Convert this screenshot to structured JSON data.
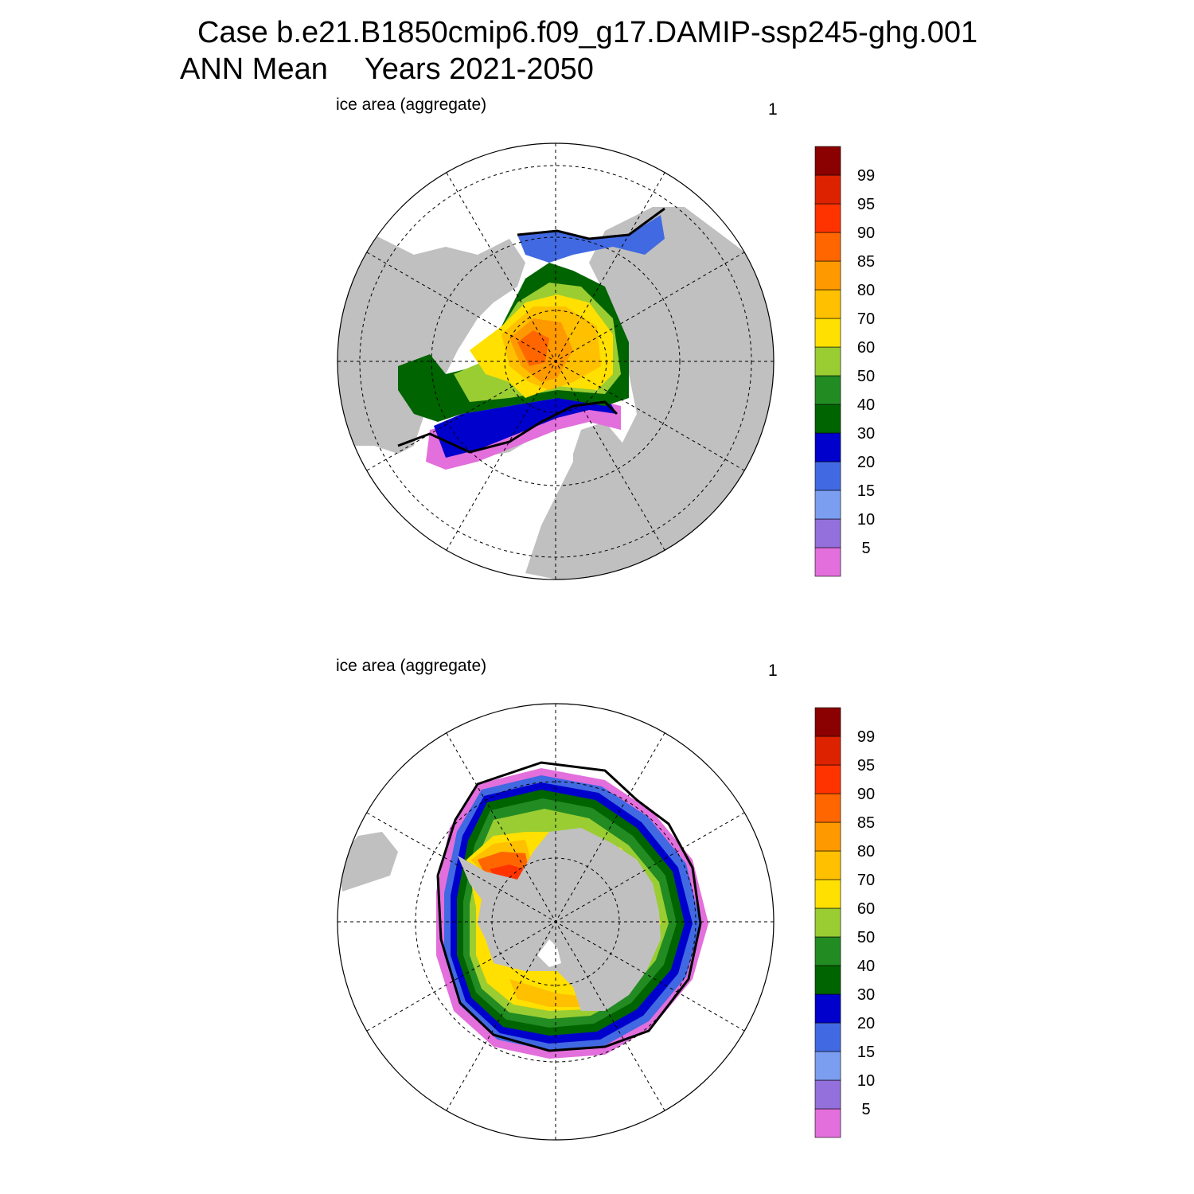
{
  "title": {
    "case": "Case b.e21.B1850cmip6.f09_g17.DAMIP-ssp245-ghg.001",
    "season": "ANN Mean",
    "years": "Years 2021-2050"
  },
  "panels": [
    {
      "label": "ice area  (aggregate)",
      "value": "1",
      "hemisphere": "north"
    },
    {
      "label": "ice area  (aggregate)",
      "value": "1",
      "hemisphere": "south"
    }
  ],
  "colorbar": {
    "levels": [
      "5",
      "10",
      "15",
      "20",
      "30",
      "40",
      "50",
      "60",
      "70",
      "80",
      "85",
      "90",
      "95",
      "99"
    ],
    "colors": [
      "#e36fdc",
      "#9370db",
      "#7b9ef0",
      "#4169e1",
      "#0000cd",
      "#006400",
      "#228b22",
      "#9acd32",
      "#ffe000",
      "#ffc000",
      "#ff9900",
      "#ff6600",
      "#ff3300",
      "#dd2200",
      "#8b0000"
    ]
  },
  "land_color": "#c0c0c0",
  "contour_color": "#000000"
}
